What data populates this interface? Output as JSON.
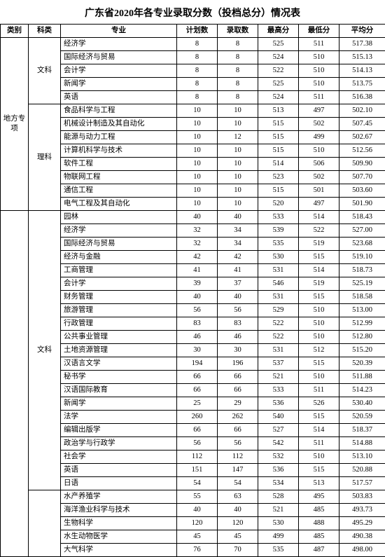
{
  "title": "广东省2020年各专业录取分数（投档总分）情况表",
  "headers": {
    "category": "类别",
    "subject": "科类",
    "major": "专业",
    "plan": "计划数",
    "admit": "录取数",
    "max": "最高分",
    "min": "最低分",
    "avg": "平均分"
  },
  "group_labels": {
    "local": "地方专项",
    "wen1": "文科",
    "li1": "理科",
    "wen2": "文科"
  },
  "rows_local_wen": [
    {
      "major": "经济学",
      "plan": 8,
      "admit": 8,
      "max": 525,
      "min": 511,
      "avg": "517.38"
    },
    {
      "major": "国际经济与贸易",
      "plan": 8,
      "admit": 8,
      "max": 524,
      "min": 510,
      "avg": "515.13"
    },
    {
      "major": "会计学",
      "plan": 8,
      "admit": 8,
      "max": 522,
      "min": 510,
      "avg": "514.13"
    },
    {
      "major": "新闻学",
      "plan": 8,
      "admit": 8,
      "max": 525,
      "min": 510,
      "avg": "513.75"
    },
    {
      "major": "英语",
      "plan": 8,
      "admit": 8,
      "max": 524,
      "min": 511,
      "avg": "516.38"
    }
  ],
  "rows_local_li": [
    {
      "major": "食品科学与工程",
      "plan": 10,
      "admit": 10,
      "max": 513,
      "min": 497,
      "avg": "502.10"
    },
    {
      "major": "机械设计制造及其自动化",
      "plan": 10,
      "admit": 10,
      "max": 515,
      "min": 502,
      "avg": "507.45"
    },
    {
      "major": "能源与动力工程",
      "plan": 10,
      "admit": 12,
      "max": 515,
      "min": 499,
      "avg": "502.67"
    },
    {
      "major": "计算机科学与技术",
      "plan": 10,
      "admit": 10,
      "max": 515,
      "min": 510,
      "avg": "512.56"
    },
    {
      "major": "软件工程",
      "plan": 10,
      "admit": 10,
      "max": 514,
      "min": 506,
      "avg": "509.90"
    },
    {
      "major": "物联网工程",
      "plan": 10,
      "admit": 10,
      "max": 523,
      "min": 502,
      "avg": "507.70"
    },
    {
      "major": "通信工程",
      "plan": 10,
      "admit": 10,
      "max": 515,
      "min": 501,
      "avg": "503.60"
    },
    {
      "major": "电气工程及其自动化",
      "plan": 10,
      "admit": 10,
      "max": 520,
      "min": 497,
      "avg": "501.90"
    }
  ],
  "rows_main_wen": [
    {
      "major": "园林",
      "plan": 40,
      "admit": 40,
      "max": 533,
      "min": 514,
      "avg": "518.43"
    },
    {
      "major": "经济学",
      "plan": 32,
      "admit": 34,
      "max": 539,
      "min": 522,
      "avg": "527.00"
    },
    {
      "major": "国际经济与贸易",
      "plan": 32,
      "admit": 34,
      "max": 535,
      "min": 519,
      "avg": "523.68"
    },
    {
      "major": "经济与金融",
      "plan": 42,
      "admit": 42,
      "max": 530,
      "min": 515,
      "avg": "519.10"
    },
    {
      "major": "工商管理",
      "plan": 41,
      "admit": 41,
      "max": 531,
      "min": 514,
      "avg": "518.73"
    },
    {
      "major": "会计学",
      "plan": 39,
      "admit": 37,
      "max": 546,
      "min": 519,
      "avg": "525.19"
    },
    {
      "major": "财务管理",
      "plan": 40,
      "admit": 40,
      "max": 531,
      "min": 515,
      "avg": "518.58"
    },
    {
      "major": "旅游管理",
      "plan": 56,
      "admit": 56,
      "max": 529,
      "min": 510,
      "avg": "513.00"
    },
    {
      "major": "行政管理",
      "plan": 83,
      "admit": 83,
      "max": 522,
      "min": 510,
      "avg": "512.99"
    },
    {
      "major": "公共事业管理",
      "plan": 46,
      "admit": 46,
      "max": 522,
      "min": 510,
      "avg": "512.80"
    },
    {
      "major": "土地资源管理",
      "plan": 30,
      "admit": 30,
      "max": 531,
      "min": 512,
      "avg": "515.20"
    },
    {
      "major": "汉语言文学",
      "plan": 194,
      "admit": 196,
      "max": 537,
      "min": 515,
      "avg": "520.39"
    },
    {
      "major": "秘书学",
      "plan": 66,
      "admit": 66,
      "max": 521,
      "min": 510,
      "avg": "511.88"
    },
    {
      "major": "汉语国际教育",
      "plan": 66,
      "admit": 66,
      "max": 533,
      "min": 511,
      "avg": "514.23"
    },
    {
      "major": "新闻学",
      "plan": 25,
      "admit": 29,
      "max": 536,
      "min": 526,
      "avg": "530.40"
    },
    {
      "major": "法学",
      "plan": 260,
      "admit": 262,
      "max": 540,
      "min": 515,
      "avg": "520.59"
    },
    {
      "major": "编辑出版学",
      "plan": 66,
      "admit": 66,
      "max": 527,
      "min": 514,
      "avg": "518.37"
    },
    {
      "major": "政治学与行政学",
      "plan": 56,
      "admit": 56,
      "max": 542,
      "min": 511,
      "avg": "514.88"
    },
    {
      "major": "社会学",
      "plan": 112,
      "admit": 112,
      "max": 532,
      "min": 510,
      "avg": "513.10"
    },
    {
      "major": "英语",
      "plan": 151,
      "admit": 147,
      "max": 536,
      "min": 515,
      "avg": "520.88"
    },
    {
      "major": "日语",
      "plan": 54,
      "admit": 54,
      "max": 534,
      "min": 513,
      "avg": "517.57"
    }
  ],
  "rows_main_next": [
    {
      "major": "水产养殖学",
      "plan": 55,
      "admit": 63,
      "max": 528,
      "min": 495,
      "avg": "503.83"
    },
    {
      "major": "海洋渔业科学与技术",
      "plan": 40,
      "admit": 40,
      "max": 521,
      "min": 485,
      "avg": "493.73"
    },
    {
      "major": "生物科学",
      "plan": 120,
      "admit": 120,
      "max": 530,
      "min": 488,
      "avg": "495.29"
    },
    {
      "major": "水生动物医学",
      "plan": 45,
      "admit": 45,
      "max": 499,
      "min": 485,
      "avg": "490.38"
    },
    {
      "major": "大气科学",
      "plan": 76,
      "admit": 70,
      "max": 535,
      "min": 487,
      "avg": "498.00"
    }
  ],
  "col_widths": {
    "category": "40px",
    "subject": "40px",
    "major": "180px",
    "num": "58px"
  }
}
